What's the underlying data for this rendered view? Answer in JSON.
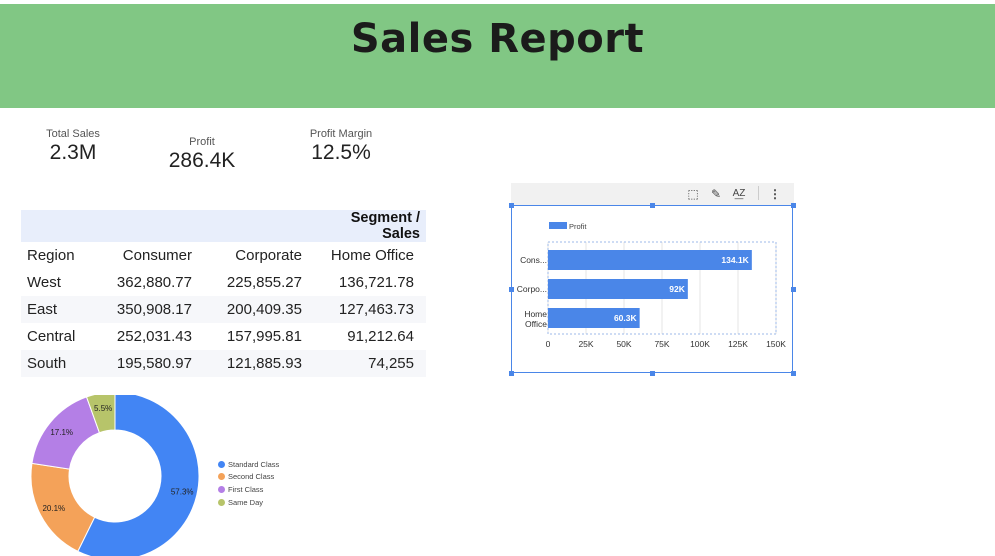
{
  "header": {
    "title": "Sales Report",
    "bg_color": "#81c784"
  },
  "kpis": [
    {
      "label": "Total Sales",
      "value": "2.3M"
    },
    {
      "label": "Profit",
      "value": "286.4K"
    },
    {
      "label": "Profit Margin",
      "value": "12.5%"
    }
  ],
  "segment_table": {
    "title": "Segment / Sales",
    "columns": [
      "Region",
      "Consumer",
      "Corporate",
      "Home Office"
    ],
    "rows": [
      [
        "West",
        "362,880.77",
        "225,855.27",
        "136,721.78"
      ],
      [
        "East",
        "350,908.17",
        "200,409.35",
        "127,463.73"
      ],
      [
        "Central",
        "252,031.43",
        "157,995.81",
        "91,212.64"
      ],
      [
        "South",
        "195,580.97",
        "121,885.93",
        "74,255"
      ]
    ]
  },
  "toolbar": {
    "icons": [
      "select-icon",
      "pencil-icon",
      "sort-az-icon",
      "more-vert-icon"
    ],
    "glyphs": [
      "⬚",
      "✎",
      "A͟Z",
      "⋮"
    ]
  },
  "chart_data": [
    {
      "type": "pie",
      "donut": true,
      "categories": [
        "Standard Class",
        "Second Class",
        "First Class",
        "Same Day"
      ],
      "values": [
        57.3,
        20.1,
        17.1,
        5.5
      ],
      "labels": [
        "57.3%",
        "20.1%",
        "17.1%",
        "5.5%"
      ],
      "colors": [
        "#4285f4",
        "#f4a259",
        "#b47fe6",
        "#b7c46a"
      ],
      "legend": "right"
    },
    {
      "type": "bar",
      "orientation": "horizontal",
      "categories": [
        "Cons...",
        "Corpo...",
        "Home Office"
      ],
      "values": [
        134100,
        92000,
        60300
      ],
      "data_labels": [
        "134.1K",
        "92K",
        "60.3K"
      ],
      "series": [
        {
          "name": "Profit",
          "values": [
            134100,
            92000,
            60300
          ]
        }
      ],
      "xlim": [
        0,
        150000
      ],
      "xticks": [
        "0",
        "25K",
        "50K",
        "75K",
        "100K",
        "125K",
        "150K"
      ],
      "color": "#4a86e8",
      "grid": true,
      "legend": "top-left"
    }
  ]
}
